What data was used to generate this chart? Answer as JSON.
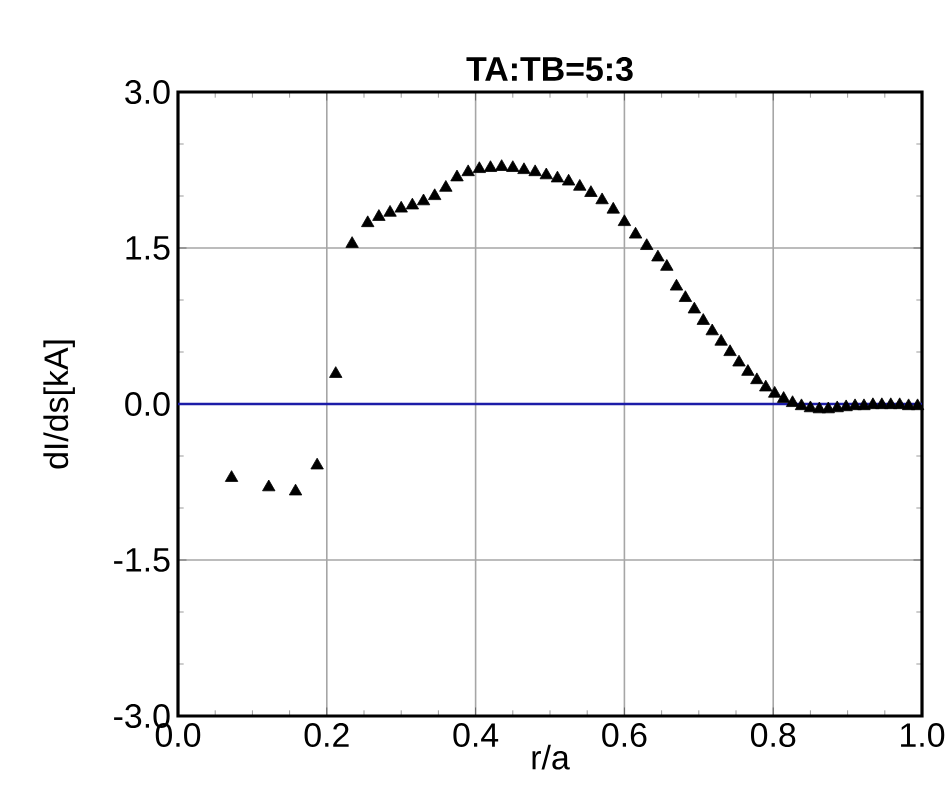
{
  "chart_data": {
    "type": "scatter",
    "title": "TA:TB=5:3",
    "xlabel": "r/a",
    "ylabel": "dI/ds[kA]",
    "xlim": [
      0,
      1
    ],
    "ylim": [
      -3,
      3
    ],
    "xticks": [
      {
        "value": 0,
        "label": "0.0"
      },
      {
        "value": 0.2,
        "label": "0.2"
      },
      {
        "value": 0.4,
        "label": "0.4"
      },
      {
        "value": 0.6,
        "label": "0.6"
      },
      {
        "value": 0.8,
        "label": "0.8"
      },
      {
        "value": 1,
        "label": "1.0"
      }
    ],
    "yticks": [
      {
        "value": -3,
        "label": "-3.0"
      },
      {
        "value": -1.5,
        "label": "-1.5"
      },
      {
        "value": 0,
        "label": "0.0"
      },
      {
        "value": 1.5,
        "label": "1.5"
      },
      {
        "value": 3,
        "label": "3.0"
      }
    ],
    "grid": true,
    "marker": "triangle",
    "ref_lines": [
      {
        "axis": "y",
        "value": 0,
        "color": "#1c1ca8",
        "line_style": "solid"
      }
    ],
    "series": [
      {
        "color": "#000000",
        "x": [
          0.072,
          0.122,
          0.158,
          0.187,
          0.212,
          0.234,
          0.255,
          0.27,
          0.285,
          0.3,
          0.315,
          0.33,
          0.345,
          0.36,
          0.375,
          0.39,
          0.405,
          0.42,
          0.435,
          0.45,
          0.465,
          0.48,
          0.495,
          0.51,
          0.525,
          0.54,
          0.555,
          0.57,
          0.585,
          0.6,
          0.615,
          0.63,
          0.645,
          0.657,
          0.67,
          0.682,
          0.694,
          0.706,
          0.718,
          0.73,
          0.742,
          0.754,
          0.766,
          0.778,
          0.79,
          0.802,
          0.814,
          0.826,
          0.838,
          0.85,
          0.862,
          0.874,
          0.886,
          0.898,
          0.91,
          0.922,
          0.934,
          0.946,
          0.958,
          0.97,
          0.982,
          0.994
        ],
        "values": [
          -0.71,
          -0.8,
          -0.84,
          -0.59,
          0.29,
          1.54,
          1.74,
          1.8,
          1.84,
          1.88,
          1.91,
          1.95,
          2.0,
          2.08,
          2.18,
          2.23,
          2.26,
          2.27,
          2.28,
          2.27,
          2.25,
          2.23,
          2.2,
          2.17,
          2.14,
          2.09,
          2.03,
          1.96,
          1.87,
          1.75,
          1.63,
          1.52,
          1.41,
          1.32,
          1.13,
          1.02,
          0.91,
          0.8,
          0.7,
          0.6,
          0.5,
          0.4,
          0.31,
          0.23,
          0.16,
          0.1,
          0.05,
          0.01,
          -0.02,
          -0.04,
          -0.05,
          -0.05,
          -0.04,
          -0.03,
          -0.02,
          -0.02,
          -0.01,
          -0.01,
          -0.01,
          -0.01,
          -0.02,
          -0.02
        ]
      }
    ]
  }
}
